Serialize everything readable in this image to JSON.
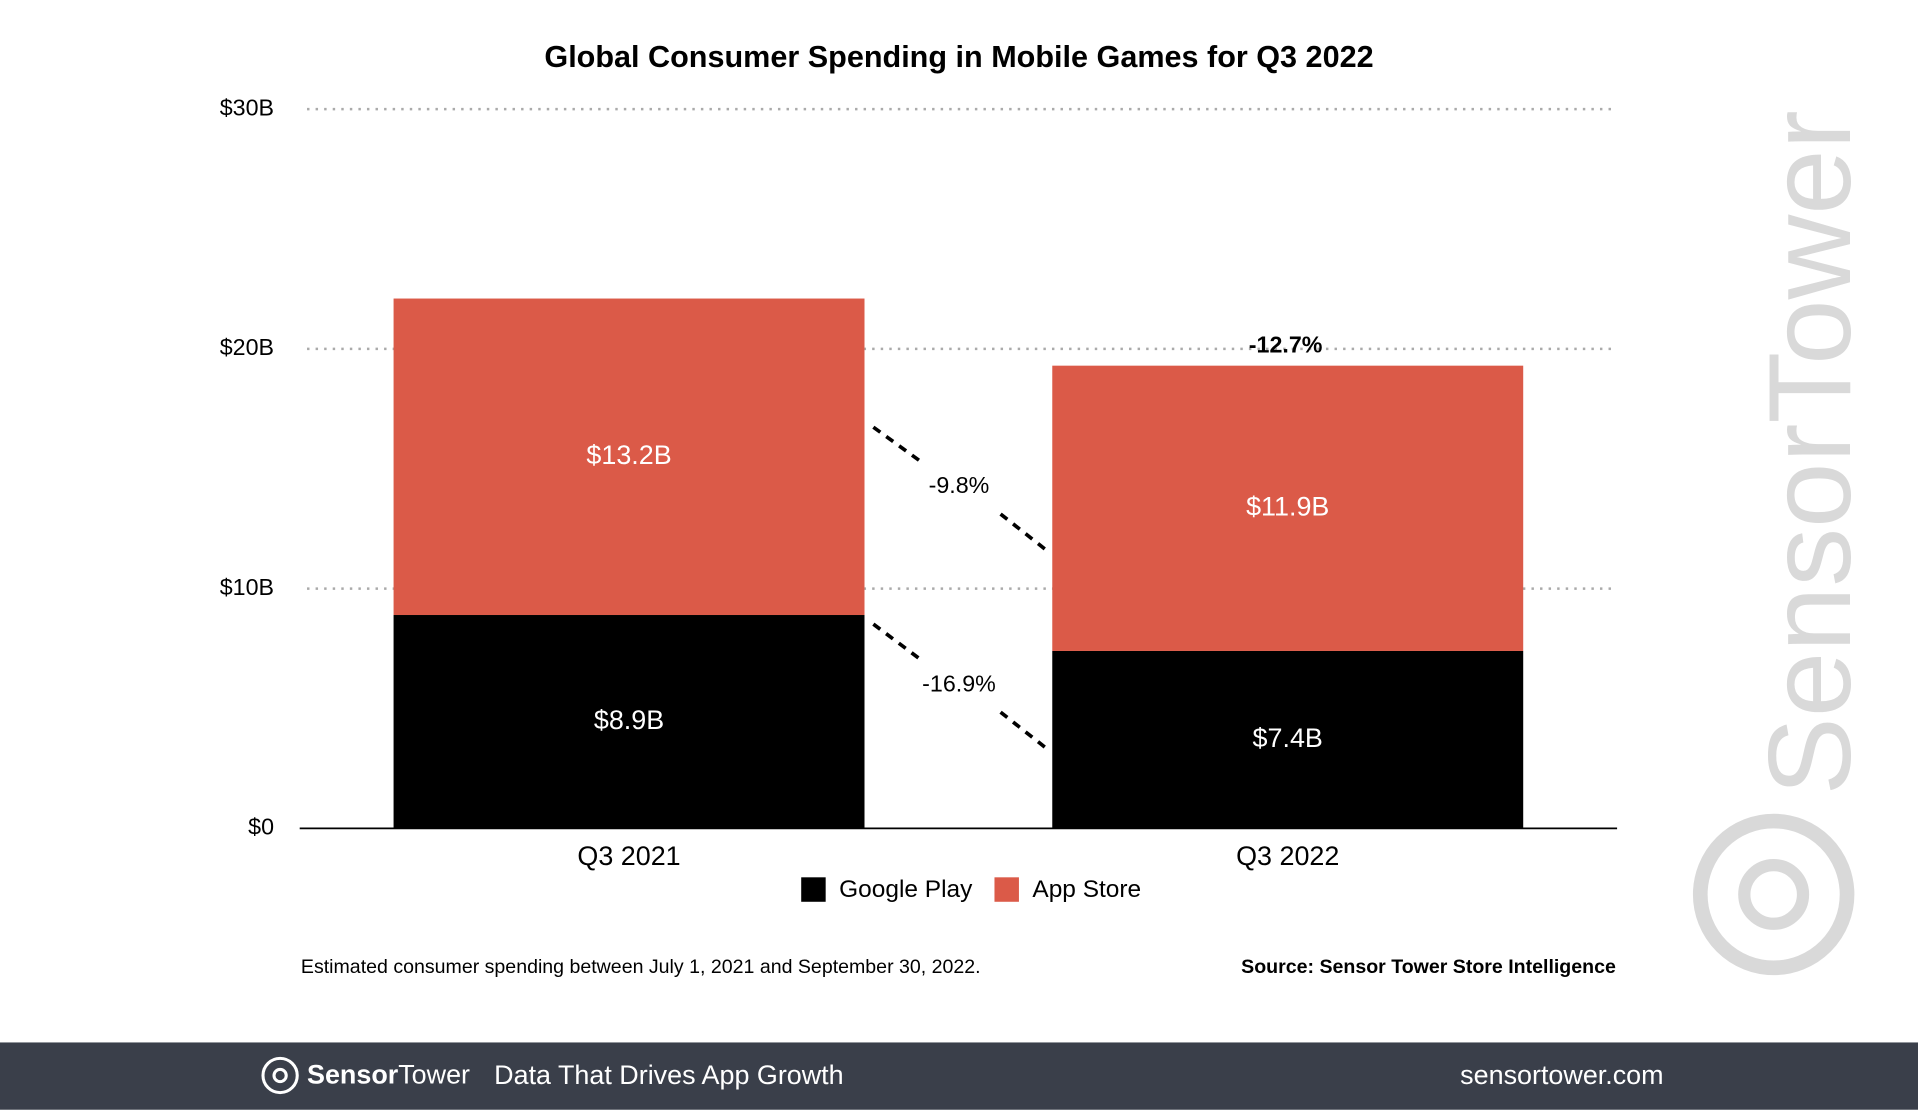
{
  "chart_data": {
    "type": "bar",
    "stacked": true,
    "title": "Global Consumer Spending in Mobile Games for Q3 2022",
    "categories": [
      "Q3 2021",
      "Q3 2022"
    ],
    "series": [
      {
        "name": "Google Play",
        "color": "#000000",
        "values": [
          8.9,
          7.4
        ],
        "value_labels": [
          "$8.9B",
          "$7.4B"
        ]
      },
      {
        "name": "App Store",
        "color": "#db5a48",
        "values": [
          13.2,
          11.9
        ],
        "value_labels": [
          "$13.2B",
          "$11.9B"
        ]
      }
    ],
    "ylim": [
      0,
      30
    ],
    "yticks": [
      {
        "value": 0,
        "label": "$0"
      },
      {
        "value": 10,
        "label": "$10B"
      },
      {
        "value": 20,
        "label": "$20B"
      },
      {
        "value": 30,
        "label": "$30B"
      }
    ],
    "grid": true,
    "legend": "bottom",
    "annotations": [
      "-9.8%",
      "-16.9%",
      "-12.7%"
    ],
    "footnote": "Estimated consumer spending between July 1, 2021 and September 30, 2022.",
    "source": "Source: Sensor Tower Store Intelligence"
  },
  "watermark": "SensorTower",
  "footer": {
    "brand_bold": "Sensor",
    "brand_light": "Tower",
    "tagline": "Data That Drives App Growth",
    "url": "sensortower.com"
  }
}
